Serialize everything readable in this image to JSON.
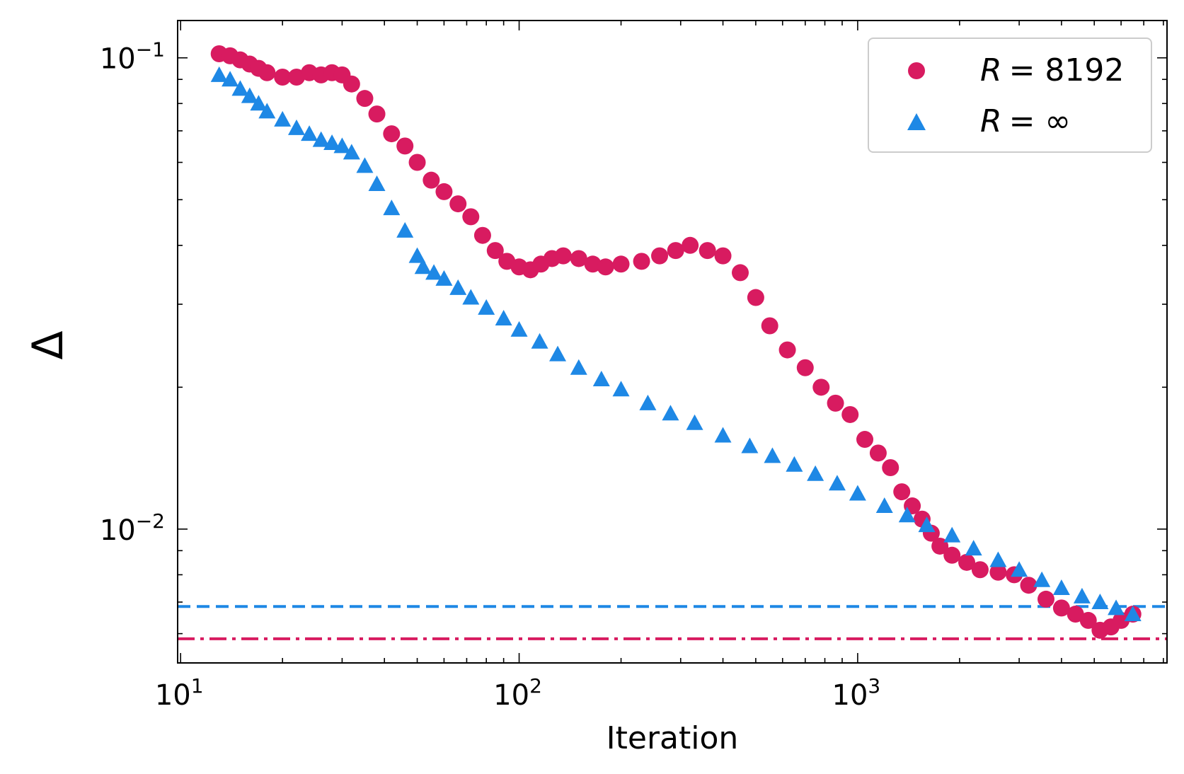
{
  "chart_data": {
    "type": "scatter",
    "xlabel": "Iteration",
    "ylabel": "Δ",
    "xscale": "log",
    "yscale": "log",
    "xlim": [
      9.8,
      8200
    ],
    "ylim": [
      0.0052,
      0.12
    ],
    "grid": false,
    "legend_position": "top-right",
    "x_ticks": [
      {
        "value": 10,
        "base": "10",
        "exp": "1"
      },
      {
        "value": 100,
        "base": "10",
        "exp": "2"
      },
      {
        "value": 1000,
        "base": "10",
        "exp": "3"
      }
    ],
    "y_ticks": [
      {
        "value": 0.1,
        "base": "10",
        "exp": "−1"
      },
      {
        "value": 0.01,
        "base": "10",
        "exp": "−2"
      }
    ],
    "series": [
      {
        "name": "R = 8192",
        "legend_var": "R",
        "legend_value": "= 8192",
        "marker": "circle",
        "color": "#D81B60",
        "points": [
          [
            13,
            0.102
          ],
          [
            14,
            0.101
          ],
          [
            15,
            0.099
          ],
          [
            16,
            0.097
          ],
          [
            17,
            0.095
          ],
          [
            18,
            0.093
          ],
          [
            20,
            0.091
          ],
          [
            22,
            0.091
          ],
          [
            24,
            0.093
          ],
          [
            26,
            0.092
          ],
          [
            28,
            0.093
          ],
          [
            30,
            0.092
          ],
          [
            32,
            0.088
          ],
          [
            35,
            0.082
          ],
          [
            38,
            0.076
          ],
          [
            42,
            0.069
          ],
          [
            46,
            0.065
          ],
          [
            50,
            0.06
          ],
          [
            55,
            0.055
          ],
          [
            60,
            0.052
          ],
          [
            66,
            0.049
          ],
          [
            72,
            0.046
          ],
          [
            78,
            0.042
          ],
          [
            85,
            0.039
          ],
          [
            92,
            0.037
          ],
          [
            100,
            0.036
          ],
          [
            108,
            0.0355
          ],
          [
            116,
            0.0365
          ],
          [
            125,
            0.0375
          ],
          [
            135,
            0.038
          ],
          [
            150,
            0.0375
          ],
          [
            165,
            0.0365
          ],
          [
            180,
            0.036
          ],
          [
            200,
            0.0365
          ],
          [
            230,
            0.037
          ],
          [
            260,
            0.038
          ],
          [
            290,
            0.039
          ],
          [
            320,
            0.04
          ],
          [
            360,
            0.039
          ],
          [
            400,
            0.038
          ],
          [
            450,
            0.035
          ],
          [
            500,
            0.031
          ],
          [
            550,
            0.027
          ],
          [
            620,
            0.024
          ],
          [
            700,
            0.022
          ],
          [
            780,
            0.02
          ],
          [
            860,
            0.0185
          ],
          [
            950,
            0.0175
          ],
          [
            1050,
            0.0155
          ],
          [
            1150,
            0.0145
          ],
          [
            1250,
            0.0135
          ],
          [
            1350,
            0.012
          ],
          [
            1450,
            0.0112
          ],
          [
            1550,
            0.0105
          ],
          [
            1650,
            0.0098
          ],
          [
            1750,
            0.0092
          ],
          [
            1900,
            0.0088
          ],
          [
            2100,
            0.0085
          ],
          [
            2300,
            0.0082
          ],
          [
            2600,
            0.0081
          ],
          [
            2900,
            0.008
          ],
          [
            3200,
            0.0076
          ],
          [
            3600,
            0.0071
          ],
          [
            4000,
            0.0068
          ],
          [
            4400,
            0.0066
          ],
          [
            4800,
            0.0064
          ],
          [
            5200,
            0.0061
          ],
          [
            5600,
            0.0062
          ],
          [
            6000,
            0.0064
          ],
          [
            6500,
            0.0066
          ]
        ]
      },
      {
        "name": "R = ∞",
        "legend_var": "R",
        "legend_value": "= ∞",
        "marker": "triangle",
        "color": "#1E88E5",
        "points": [
          [
            13,
            0.092
          ],
          [
            14,
            0.09
          ],
          [
            15,
            0.086
          ],
          [
            16,
            0.083
          ],
          [
            17,
            0.08
          ],
          [
            18,
            0.077
          ],
          [
            20,
            0.074
          ],
          [
            22,
            0.071
          ],
          [
            24,
            0.069
          ],
          [
            26,
            0.067
          ],
          [
            28,
            0.066
          ],
          [
            30,
            0.065
          ],
          [
            32,
            0.063
          ],
          [
            35,
            0.059
          ],
          [
            38,
            0.054
          ],
          [
            42,
            0.048
          ],
          [
            46,
            0.043
          ],
          [
            50,
            0.038
          ],
          [
            52,
            0.036
          ],
          [
            56,
            0.035
          ],
          [
            60,
            0.034
          ],
          [
            66,
            0.0325
          ],
          [
            72,
            0.031
          ],
          [
            80,
            0.0295
          ],
          [
            90,
            0.028
          ],
          [
            100,
            0.0265
          ],
          [
            115,
            0.025
          ],
          [
            130,
            0.0235
          ],
          [
            150,
            0.022
          ],
          [
            175,
            0.0208
          ],
          [
            200,
            0.0198
          ],
          [
            240,
            0.0185
          ],
          [
            280,
            0.0176
          ],
          [
            330,
            0.0168
          ],
          [
            400,
            0.0158
          ],
          [
            480,
            0.015
          ],
          [
            560,
            0.0143
          ],
          [
            650,
            0.0137
          ],
          [
            750,
            0.0131
          ],
          [
            870,
            0.0125
          ],
          [
            1000,
            0.0119
          ],
          [
            1200,
            0.0112
          ],
          [
            1400,
            0.0107
          ],
          [
            1600,
            0.0102
          ],
          [
            1900,
            0.0097
          ],
          [
            2200,
            0.0091
          ],
          [
            2600,
            0.0086
          ],
          [
            3000,
            0.0082
          ],
          [
            3500,
            0.0078
          ],
          [
            4000,
            0.0075
          ],
          [
            4600,
            0.0072
          ],
          [
            5200,
            0.007
          ],
          [
            5800,
            0.0068
          ],
          [
            6500,
            0.0066
          ]
        ]
      }
    ],
    "reference_lines": [
      {
        "y": 0.00685,
        "style": "dashed",
        "color": "#1E88E5"
      },
      {
        "y": 0.00585,
        "style": "dashdot",
        "color": "#D81B60"
      }
    ]
  }
}
